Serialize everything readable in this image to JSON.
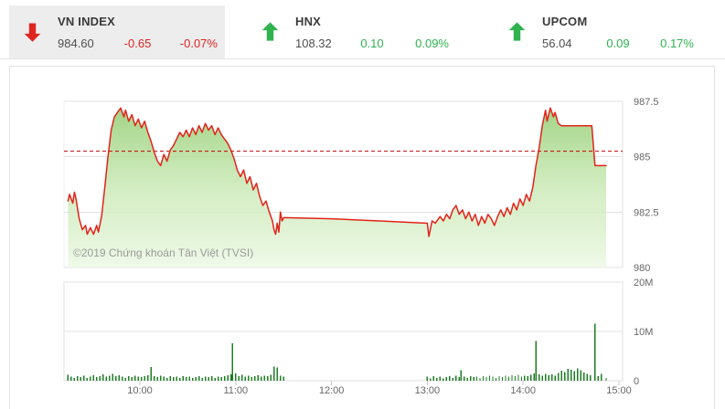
{
  "header": {
    "indices": [
      {
        "name": "VN INDEX",
        "value": "984.60",
        "change": "-0.65",
        "change_pct": "-0.07%",
        "direction": "down",
        "highlighted": true
      },
      {
        "name": "HNX",
        "value": "108.32",
        "change": "0.10",
        "change_pct": "0.09%",
        "direction": "up",
        "highlighted": false
      },
      {
        "name": "UPCOM",
        "value": "56.04",
        "change": "0.09",
        "change_pct": "0.17%",
        "direction": "up",
        "highlighted": false
      }
    ]
  },
  "colors": {
    "up_green": "#2eb34f",
    "down_red": "#e02420",
    "price_line": "#e2231a",
    "reference_line": "#c40000",
    "area_top": "#8cca68",
    "area_mid": "#c9e9b4",
    "area_bottom": "#eff9e8",
    "volume_bar": "#1e7d23",
    "grid": "#e2e2e2",
    "axis_text": "#666666",
    "ticker_highlight_bg": "#ededed"
  },
  "chart": {
    "copyright": "©2019 Chứng khoán Tân Việt (TVSI)"
  },
  "chart_data": {
    "type": "line",
    "title": "VN-Index intraday price with volume",
    "x_axis": {
      "labels": [
        "10:00",
        "11:00",
        "12:00",
        "13:00",
        "14:00",
        "15:00"
      ],
      "range": [
        "09:15",
        "15:05"
      ]
    },
    "price_axis": {
      "ticks": [
        987.5,
        985,
        982.5,
        980
      ],
      "labels": [
        "987.5",
        "985",
        "982.5",
        "980"
      ],
      "range": [
        980,
        987.5
      ],
      "side": "right"
    },
    "volume_axis": {
      "ticks_millions": [
        20,
        10,
        0
      ],
      "labels": [
        "20M",
        "10M",
        "0"
      ],
      "range_millions": [
        0,
        20
      ],
      "side": "right"
    },
    "reference_line_value": 985.25,
    "session_break": [
      "11:30",
      "13:00"
    ],
    "legend": "off",
    "grid": "on",
    "price_series": [
      [
        "09:15",
        983.0
      ],
      [
        "09:16",
        983.3
      ],
      [
        "09:18",
        982.9
      ],
      [
        "09:19",
        983.4
      ],
      [
        "09:20",
        983.1
      ],
      [
        "09:22",
        982.2
      ],
      [
        "09:24",
        981.7
      ],
      [
        "09:26",
        981.9
      ],
      [
        "09:27",
        981.5
      ],
      [
        "09:29",
        981.8
      ],
      [
        "09:31",
        981.5
      ],
      [
        "09:33",
        981.9
      ],
      [
        "09:34",
        981.6
      ],
      [
        "09:36",
        982.3
      ],
      [
        "09:38",
        983.6
      ],
      [
        "09:40",
        985.0
      ],
      [
        "09:42",
        986.2
      ],
      [
        "09:44",
        986.8
      ],
      [
        "09:46",
        987.0
      ],
      [
        "09:48",
        987.2
      ],
      [
        "09:50",
        986.8
      ],
      [
        "09:51",
        987.1
      ],
      [
        "09:53",
        986.6
      ],
      [
        "09:55",
        986.9
      ],
      [
        "09:57",
        986.4
      ],
      [
        "09:59",
        986.7
      ],
      [
        "10:01",
        986.3
      ],
      [
        "10:03",
        986.6
      ],
      [
        "10:05",
        986.1
      ],
      [
        "10:07",
        985.7
      ],
      [
        "10:09",
        985.2
      ],
      [
        "10:11",
        984.8
      ],
      [
        "10:13",
        984.6
      ],
      [
        "10:15",
        985.1
      ],
      [
        "10:17",
        984.8
      ],
      [
        "10:19",
        985.3
      ],
      [
        "10:21",
        985.5
      ],
      [
        "10:23",
        985.8
      ],
      [
        "10:25",
        986.1
      ],
      [
        "10:27",
        985.9
      ],
      [
        "10:29",
        986.2
      ],
      [
        "10:31",
        985.9
      ],
      [
        "10:33",
        986.3
      ],
      [
        "10:35",
        986.0
      ],
      [
        "10:37",
        986.4
      ],
      [
        "10:39",
        986.1
      ],
      [
        "10:41",
        986.5
      ],
      [
        "10:43",
        986.2
      ],
      [
        "10:45",
        986.4
      ],
      [
        "10:47",
        986.0
      ],
      [
        "10:49",
        986.3
      ],
      [
        "10:51",
        986.0
      ],
      [
        "10:53",
        985.8
      ],
      [
        "10:55",
        985.6
      ],
      [
        "10:57",
        985.3
      ],
      [
        "10:59",
        984.9
      ],
      [
        "11:01",
        984.4
      ],
      [
        "11:03",
        984.1
      ],
      [
        "11:05",
        984.4
      ],
      [
        "11:07",
        983.8
      ],
      [
        "11:09",
        984.1
      ],
      [
        "11:11",
        983.5
      ],
      [
        "11:13",
        983.8
      ],
      [
        "11:15",
        983.2
      ],
      [
        "11:17",
        982.8
      ],
      [
        "11:19",
        983.0
      ],
      [
        "11:21",
        982.5
      ],
      [
        "11:23",
        982.1
      ],
      [
        "11:24",
        981.7
      ],
      [
        "11:25",
        981.5
      ],
      [
        "11:26",
        982.0
      ],
      [
        "11:27",
        981.6
      ],
      [
        "11:28",
        982.5
      ],
      [
        "11:29",
        982.1
      ],
      [
        "11:30",
        982.25
      ],
      [
        "12:00",
        982.2
      ],
      [
        "12:30",
        982.1
      ],
      [
        "13:00",
        982.0
      ],
      [
        "13:01",
        981.4
      ],
      [
        "13:03",
        982.1
      ],
      [
        "13:05",
        982.0
      ],
      [
        "13:08",
        982.3
      ],
      [
        "13:10",
        982.1
      ],
      [
        "13:12",
        982.4
      ],
      [
        "13:14",
        982.2
      ],
      [
        "13:16",
        982.6
      ],
      [
        "13:18",
        982.8
      ],
      [
        "13:20",
        982.4
      ],
      [
        "13:22",
        982.6
      ],
      [
        "13:24",
        982.2
      ],
      [
        "13:26",
        982.5
      ],
      [
        "13:28",
        982.1
      ],
      [
        "13:30",
        982.4
      ],
      [
        "13:32",
        981.9
      ],
      [
        "13:34",
        982.3
      ],
      [
        "13:36",
        982.0
      ],
      [
        "13:38",
        982.4
      ],
      [
        "13:40",
        982.2
      ],
      [
        "13:42",
        981.9
      ],
      [
        "13:44",
        982.3
      ],
      [
        "13:46",
        982.6
      ],
      [
        "13:48",
        982.3
      ],
      [
        "13:50",
        982.7
      ],
      [
        "13:52",
        982.4
      ],
      [
        "13:54",
        982.9
      ],
      [
        "13:56",
        982.6
      ],
      [
        "13:58",
        983.1
      ],
      [
        "14:00",
        982.8
      ],
      [
        "14:02",
        983.3
      ],
      [
        "14:04",
        983.0
      ],
      [
        "14:06",
        983.6
      ],
      [
        "14:08",
        984.6
      ],
      [
        "14:10",
        985.4
      ],
      [
        "14:12",
        986.4
      ],
      [
        "14:14",
        987.1
      ],
      [
        "14:15",
        986.6
      ],
      [
        "14:17",
        987.2
      ],
      [
        "14:19",
        986.8
      ],
      [
        "14:20",
        987.0
      ],
      [
        "14:22",
        986.5
      ],
      [
        "14:24",
        986.4
      ],
      [
        "14:30",
        986.4
      ],
      [
        "14:43",
        986.4
      ],
      [
        "14:45",
        984.6
      ],
      [
        "14:52",
        984.6
      ]
    ],
    "volume_series_millions": [
      [
        "09:15",
        1.2
      ],
      [
        "09:17",
        0.8
      ],
      [
        "09:19",
        0.6
      ],
      [
        "09:21",
        0.9
      ],
      [
        "09:23",
        0.7
      ],
      [
        "09:25",
        1.0
      ],
      [
        "09:27",
        0.6
      ],
      [
        "09:29",
        0.8
      ],
      [
        "09:31",
        1.1
      ],
      [
        "09:33",
        0.7
      ],
      [
        "09:35",
        0.9
      ],
      [
        "09:37",
        1.3
      ],
      [
        "09:39",
        0.8
      ],
      [
        "09:41",
        1.0
      ],
      [
        "09:43",
        1.4
      ],
      [
        "09:45",
        0.9
      ],
      [
        "09:47",
        1.1
      ],
      [
        "09:49",
        0.8
      ],
      [
        "09:51",
        0.6
      ],
      [
        "09:53",
        0.9
      ],
      [
        "09:55",
        0.7
      ],
      [
        "09:57",
        1.0
      ],
      [
        "09:59",
        0.8
      ],
      [
        "10:01",
        0.7
      ],
      [
        "10:03",
        0.9
      ],
      [
        "10:05",
        1.1
      ],
      [
        "10:07",
        2.8
      ],
      [
        "10:09",
        0.9
      ],
      [
        "10:11",
        0.7
      ],
      [
        "10:13",
        1.0
      ],
      [
        "10:15",
        0.8
      ],
      [
        "10:17",
        0.6
      ],
      [
        "10:19",
        0.9
      ],
      [
        "10:21",
        0.7
      ],
      [
        "10:23",
        0.8
      ],
      [
        "10:25",
        0.6
      ],
      [
        "10:27",
        0.9
      ],
      [
        "10:29",
        0.7
      ],
      [
        "10:31",
        0.8
      ],
      [
        "10:33",
        0.6
      ],
      [
        "10:35",
        0.7
      ],
      [
        "10:37",
        0.9
      ],
      [
        "10:39",
        0.6
      ],
      [
        "10:41",
        0.8
      ],
      [
        "10:43",
        0.7
      ],
      [
        "10:45",
        0.9
      ],
      [
        "10:47",
        0.6
      ],
      [
        "10:49",
        0.8
      ],
      [
        "10:51",
        0.7
      ],
      [
        "10:53",
        0.9
      ],
      [
        "10:55",
        1.1
      ],
      [
        "10:57",
        1.3
      ],
      [
        "10:58",
        7.6
      ],
      [
        "11:00",
        1.5
      ],
      [
        "11:02",
        0.9
      ],
      [
        "11:04",
        1.2
      ],
      [
        "11:06",
        0.8
      ],
      [
        "11:08",
        1.0
      ],
      [
        "11:10",
        0.7
      ],
      [
        "11:12",
        0.9
      ],
      [
        "11:14",
        1.1
      ],
      [
        "11:16",
        0.8
      ],
      [
        "11:18",
        1.0
      ],
      [
        "11:20",
        0.9
      ],
      [
        "11:22",
        1.2
      ],
      [
        "11:24",
        2.9
      ],
      [
        "11:26",
        2.7
      ],
      [
        "11:28",
        1.0
      ],
      [
        "11:30",
        0.8
      ],
      [
        "13:00",
        0.8
      ],
      [
        "13:02",
        0.5
      ],
      [
        "13:04",
        0.9
      ],
      [
        "13:06",
        0.6
      ],
      [
        "13:08",
        0.8
      ],
      [
        "13:10",
        0.5
      ],
      [
        "13:12",
        0.7
      ],
      [
        "13:14",
        0.9
      ],
      [
        "13:16",
        0.6
      ],
      [
        "13:18",
        1.0
      ],
      [
        "13:20",
        0.7
      ],
      [
        "13:21",
        2.1
      ],
      [
        "13:23",
        0.8
      ],
      [
        "13:25",
        0.6
      ],
      [
        "13:27",
        0.9
      ],
      [
        "13:29",
        0.7
      ],
      [
        "13:31",
        0.8
      ],
      [
        "13:33",
        0.6
      ],
      [
        "13:35",
        0.9
      ],
      [
        "13:37",
        0.7
      ],
      [
        "13:39",
        1.0
      ],
      [
        "13:41",
        0.8
      ],
      [
        "13:43",
        0.6
      ],
      [
        "13:45",
        0.9
      ],
      [
        "13:47",
        0.7
      ],
      [
        "13:49",
        1.0
      ],
      [
        "13:51",
        0.8
      ],
      [
        "13:53",
        1.1
      ],
      [
        "13:55",
        0.9
      ],
      [
        "13:57",
        1.2
      ],
      [
        "13:59",
        0.8
      ],
      [
        "14:01",
        1.0
      ],
      [
        "14:03",
        0.9
      ],
      [
        "14:05",
        1.2
      ],
      [
        "14:07",
        1.5
      ],
      [
        "14:08",
        8.1
      ],
      [
        "14:10",
        1.3
      ],
      [
        "14:12",
        1.0
      ],
      [
        "14:14",
        1.4
      ],
      [
        "14:16",
        1.1
      ],
      [
        "14:18",
        1.3
      ],
      [
        "14:20",
        1.0
      ],
      [
        "14:22",
        1.6
      ],
      [
        "14:24",
        2.0
      ],
      [
        "14:26",
        1.8
      ],
      [
        "14:28",
        2.4
      ],
      [
        "14:30",
        2.2
      ],
      [
        "14:32",
        1.9
      ],
      [
        "14:34",
        2.5
      ],
      [
        "14:36",
        2.1
      ],
      [
        "14:38",
        1.7
      ],
      [
        "14:40",
        1.4
      ],
      [
        "14:42",
        1.1
      ],
      [
        "14:45",
        11.6
      ],
      [
        "14:47",
        0.9
      ],
      [
        "14:49",
        1.4
      ],
      [
        "14:52",
        0.6
      ]
    ]
  }
}
